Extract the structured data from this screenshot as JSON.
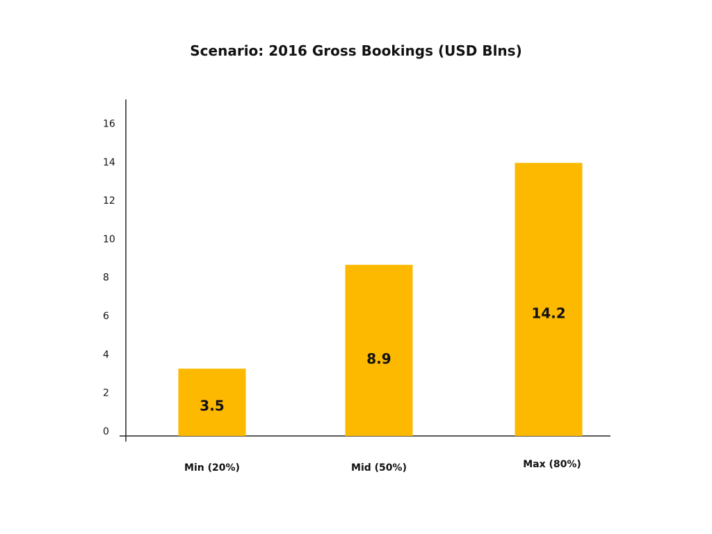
{
  "chart_data": {
    "type": "bar",
    "title": "Scenario: 2016 Gross Bookings (USD Blns)",
    "xlabel": "",
    "ylabel": "",
    "categories": [
      "Min (20%)",
      "Mid (50%)",
      "Max (80%)"
    ],
    "values": [
      3.5,
      8.9,
      14.2
    ],
    "data_labels": [
      "3.5",
      "8.9",
      "14.2"
    ],
    "yticks": [
      "0",
      "2",
      "4",
      "6",
      "8",
      "10",
      "12",
      "14",
      "16"
    ],
    "ylim": [
      0,
      17.5
    ],
    "grid": false,
    "legend": "none",
    "colors": {
      "bar": "#FDB900",
      "axis": "#222222",
      "text": "#111111"
    }
  }
}
